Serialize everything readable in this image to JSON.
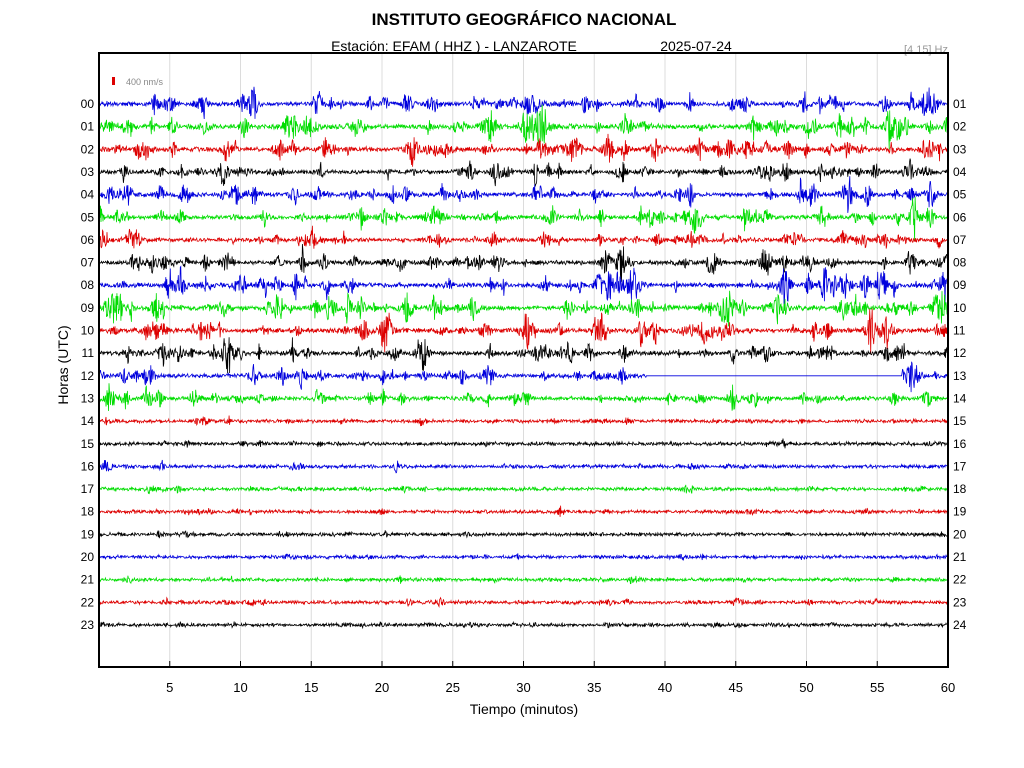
{
  "chart_data": {
    "type": "line",
    "title": "INSTITUTO GEOGRÁFICO NACIONAL",
    "subtitle_station": "Estación:  EFAM ( HHZ ) - LANZAROTE",
    "subtitle_date": "2025-07-24",
    "filter_label": "[4 15] Hz",
    "scale_label": "400 nm/s",
    "xlabel": "Tiempo (minutos)",
    "ylabel": "Horas (UTC)",
    "xlim": [
      0,
      60
    ],
    "xticks": [
      "5",
      "10",
      "15",
      "20",
      "25",
      "30",
      "35",
      "40",
      "45",
      "50",
      "55",
      "60"
    ],
    "xtick_values": [
      5,
      10,
      15,
      20,
      25,
      30,
      35,
      40,
      45,
      50,
      55,
      60
    ],
    "hours_left": [
      "00",
      "01",
      "02",
      "03",
      "04",
      "05",
      "06",
      "07",
      "08",
      "09",
      "10",
      "11",
      "12",
      "13",
      "14",
      "15",
      "16",
      "17",
      "18",
      "19",
      "20",
      "21",
      "22",
      "23"
    ],
    "hours_right": [
      "01",
      "02",
      "03",
      "04",
      "05",
      "06",
      "07",
      "08",
      "09",
      "10",
      "11",
      "12",
      "13",
      "14",
      "15",
      "16",
      "17",
      "18",
      "19",
      "20",
      "21",
      "22",
      "23",
      "24"
    ],
    "grid": true,
    "trace_colors": [
      "#0000dd",
      "#00dd00",
      "#dd0000",
      "#000000"
    ],
    "scale_color": "#dd0000",
    "gap": {
      "hour": 12,
      "start_min": 38.7,
      "end_min": 56.8
    },
    "activity_by_hour": [
      1.0,
      1.15,
      1.1,
      0.9,
      1.0,
      1.05,
      0.85,
      0.95,
      1.15,
      1.2,
      1.1,
      1.0,
      0.95,
      0.9,
      0.35,
      0.3,
      0.35,
      0.3,
      0.3,
      0.28,
      0.3,
      0.3,
      0.35,
      0.3
    ]
  }
}
